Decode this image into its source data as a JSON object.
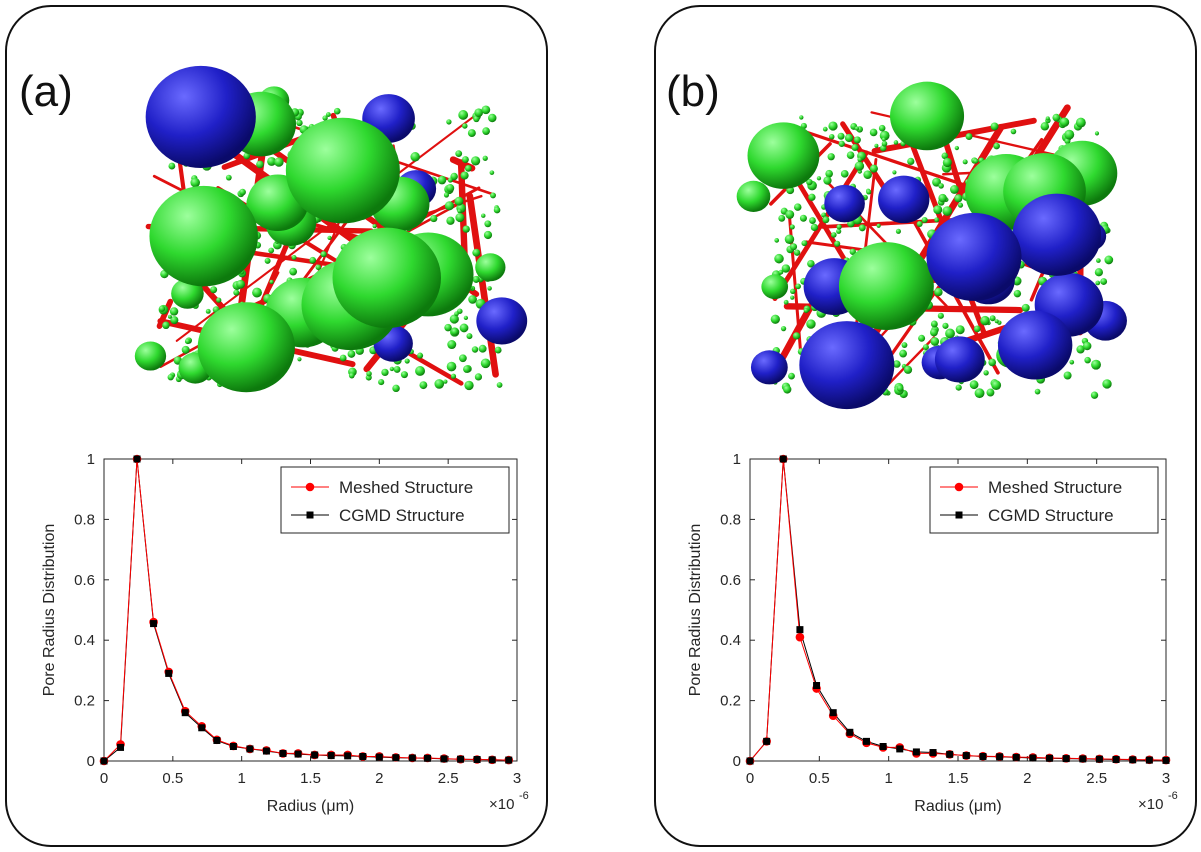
{
  "panels": [
    {
      "label": "(a)"
    },
    {
      "label": "(b)"
    }
  ],
  "colors": {
    "pore_green": "#2fd92f",
    "pore_blue": "#2020c8",
    "throat_red": "#e01010",
    "meshed_series": "#ff0000",
    "cgmd_series": "#000000"
  },
  "chart_data": [
    {
      "type": "line",
      "panel": "(a)",
      "xlabel": "Radius (μm)",
      "ylabel": "Pore Radius Distribution",
      "x_exponent_label": "×10",
      "x_exponent_power": "-6",
      "xlim": [
        0,
        3e-06
      ],
      "ylim": [
        0,
        1
      ],
      "xticks": [
        "0",
        "0.5",
        "1",
        "1.5",
        "2",
        "2.5",
        "3"
      ],
      "yticks": [
        "0",
        "0.2",
        "0.4",
        "0.6",
        "0.8",
        "1"
      ],
      "legend": [
        "Meshed Structure",
        "CGMD Structure"
      ],
      "legend_position": "top-right",
      "x": [
        0,
        1.2e-07,
        2.4e-07,
        3.6e-07,
        4.7e-07,
        5.9e-07,
        7.1e-07,
        8.2e-07,
        9.4e-07,
        1.06e-06,
        1.18e-06,
        1.3e-06,
        1.41e-06,
        1.53e-06,
        1.65e-06,
        1.77e-06,
        1.88e-06,
        2e-06,
        2.12e-06,
        2.24e-06,
        2.35e-06,
        2.47e-06,
        2.59e-06,
        2.71e-06,
        2.82e-06,
        2.94e-06
      ],
      "series": [
        {
          "name": "Meshed Structure",
          "marker": "circle",
          "color": "#ff0000",
          "values": [
            0,
            0.055,
            1.0,
            0.46,
            0.295,
            0.165,
            0.115,
            0.07,
            0.05,
            0.04,
            0.035,
            0.025,
            0.025,
            0.02,
            0.02,
            0.02,
            0.015,
            0.015,
            0.012,
            0.01,
            0.01,
            0.008,
            0.006,
            0.005,
            0.004,
            0.003
          ]
        },
        {
          "name": "CGMD Structure",
          "marker": "square",
          "color": "#000000",
          "values": [
            0,
            0.045,
            1.0,
            0.455,
            0.29,
            0.16,
            0.11,
            0.068,
            0.048,
            0.04,
            0.033,
            0.025,
            0.023,
            0.02,
            0.018,
            0.017,
            0.015,
            0.013,
            0.011,
            0.01,
            0.009,
            0.007,
            0.006,
            0.005,
            0.004,
            0.003
          ]
        }
      ]
    },
    {
      "type": "line",
      "panel": "(b)",
      "xlabel": "Radius (μm)",
      "ylabel": "Pore Radius Distribution",
      "x_exponent_label": "×10",
      "x_exponent_power": "-6",
      "xlim": [
        0,
        3e-06
      ],
      "ylim": [
        0,
        1
      ],
      "xticks": [
        "0",
        "0.5",
        "1",
        "1.5",
        "2",
        "2.5",
        "3"
      ],
      "yticks": [
        "0",
        "0.2",
        "0.4",
        "0.6",
        "0.8",
        "1"
      ],
      "legend": [
        "Meshed Structure",
        "CGMD Structure"
      ],
      "legend_position": "top-right",
      "x": [
        0,
        1.2e-07,
        2.4e-07,
        3.6e-07,
        4.8e-07,
        6e-07,
        7.2e-07,
        8.4e-07,
        9.6e-07,
        1.08e-06,
        1.2e-06,
        1.32e-06,
        1.44e-06,
        1.56e-06,
        1.68e-06,
        1.8e-06,
        1.92e-06,
        2.04e-06,
        2.16e-06,
        2.28e-06,
        2.4e-06,
        2.52e-06,
        2.64e-06,
        2.76e-06,
        2.88e-06,
        3e-06
      ],
      "series": [
        {
          "name": "Meshed Structure",
          "marker": "circle",
          "color": "#ff0000",
          "values": [
            0,
            0.065,
            1.0,
            0.41,
            0.24,
            0.15,
            0.09,
            0.06,
            0.045,
            0.045,
            0.025,
            0.025,
            0.022,
            0.018,
            0.016,
            0.015,
            0.013,
            0.012,
            0.01,
            0.009,
            0.008,
            0.007,
            0.006,
            0.005,
            0.004,
            0.003
          ]
        },
        {
          "name": "CGMD Structure",
          "marker": "square",
          "color": "#000000",
          "values": [
            0,
            0.065,
            1.0,
            0.435,
            0.25,
            0.16,
            0.095,
            0.065,
            0.048,
            0.04,
            0.03,
            0.028,
            0.022,
            0.018,
            0.015,
            0.014,
            0.012,
            0.01,
            0.009,
            0.008,
            0.007,
            0.006,
            0.005,
            0.004,
            0.003,
            0.002
          ]
        }
      ]
    }
  ]
}
